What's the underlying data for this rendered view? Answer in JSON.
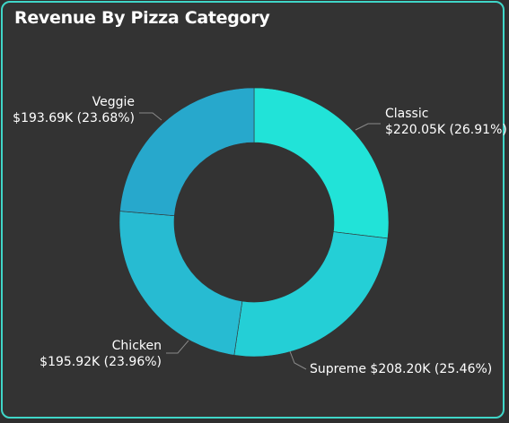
{
  "title": "Revenue By Pizza Category",
  "chart_data": {
    "type": "pie",
    "title": "Revenue By Pizza Category",
    "donut": true,
    "legend": "none",
    "slices": [
      {
        "name": "Classic",
        "value": 220.05,
        "value_label": "$220.05K",
        "percent": 26.91,
        "percent_label": "(26.91%)",
        "color": "#21e3d8"
      },
      {
        "name": "Supreme",
        "value": 208.2,
        "value_label": "$208.20K",
        "percent": 25.46,
        "percent_label": "(25.46%)",
        "color": "#24cfd6"
      },
      {
        "name": "Chicken",
        "value": 195.92,
        "value_label": "$195.92K",
        "percent": 23.96,
        "percent_label": "(23.96%)",
        "color": "#27bbd2"
      },
      {
        "name": "Veggie",
        "value": 193.69,
        "value_label": "$193.69K",
        "percent": 23.68,
        "percent_label": "(23.68%)",
        "color": "#27a8cc"
      }
    ]
  },
  "colors": {
    "border": "#3fd6c8",
    "background": "#333333",
    "text": "#ffffff",
    "leader": "#8a8a8a"
  }
}
